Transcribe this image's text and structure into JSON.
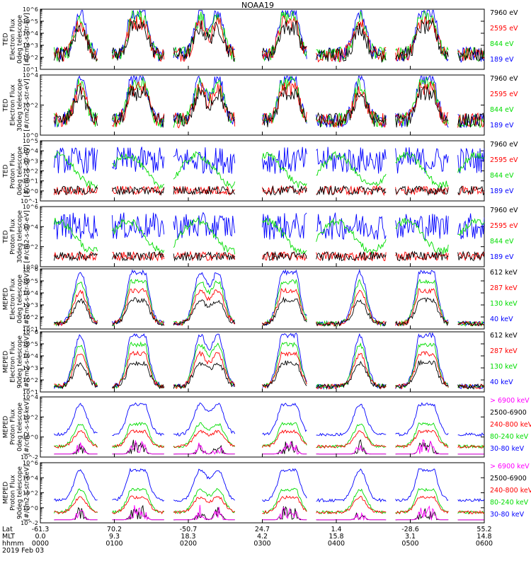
{
  "title": "NOAA19",
  "colors": {
    "black": "#000000",
    "red": "#ff0000",
    "green": "#00dd00",
    "blue": "#0000ff",
    "magenta": "#ff00ff"
  },
  "chart_data": {
    "type": "line",
    "x_unit": "hhmm",
    "xlim": [
      "0000",
      "0600"
    ],
    "panels": [
      {
        "ylabel": [
          "TED",
          "Electron Flux",
          "0deg telescope",
          "[#/cm2-s-str-eV]"
        ],
        "yticks": [
          "10^1",
          "10^2",
          "10^3",
          "10^4",
          "10^5",
          "10^6"
        ],
        "legend": [
          {
            "label": "7960 eV",
            "color": "#000000"
          },
          {
            "label": "2595 eV",
            "color": "#ff0000"
          },
          {
            "label": "844 eV",
            "color": "#00dd00"
          },
          {
            "label": "189 eV",
            "color": "#0000ff"
          }
        ]
      },
      {
        "ylabel": [
          "TED",
          "Electron Flux",
          "30deg telescope",
          "[#/cm2-s-str-eV]"
        ],
        "yticks": [
          "10^0",
          "10^2",
          "10^4"
        ],
        "legend": [
          {
            "label": "7960 eV",
            "color": "#000000"
          },
          {
            "label": "2595 eV",
            "color": "#ff0000"
          },
          {
            "label": "844 eV",
            "color": "#00dd00"
          },
          {
            "label": "189 eV",
            "color": "#0000ff"
          }
        ]
      },
      {
        "ylabel": [
          "TED",
          "Proton Flux",
          "0deg telescope",
          "[#/cm2-s-str-eV]"
        ],
        "yticks": [
          "10^-1",
          "10^0",
          "10^1",
          "10^2",
          "10^3",
          "10^4",
          "10^5"
        ],
        "legend": [
          {
            "label": "7960 eV",
            "color": "#000000"
          },
          {
            "label": "2595 eV",
            "color": "#ff0000"
          },
          {
            "label": "844 eV",
            "color": "#00dd00"
          },
          {
            "label": "189 eV",
            "color": "#0000ff"
          }
        ]
      },
      {
        "ylabel": [
          "TED",
          "Proton Flux",
          "30deg telescope",
          "[#/cm2-s-str-eV]"
        ],
        "yticks": [
          "10^0",
          "10^2",
          "10^4",
          "10^6"
        ],
        "legend": [
          {
            "label": "7960 eV",
            "color": "#000000"
          },
          {
            "label": "2595 eV",
            "color": "#ff0000"
          },
          {
            "label": "844 eV",
            "color": "#00dd00"
          },
          {
            "label": "189 eV",
            "color": "#0000ff"
          }
        ]
      },
      {
        "ylabel": [
          "MEPED",
          "Electron Flux",
          "0deg telescope",
          "[#/cm2-s-str-keV]"
        ],
        "yticks": [
          "10^1",
          "10^2",
          "10^3",
          "10^4",
          "10^5",
          "10^6"
        ],
        "legend": [
          {
            "label": "612 keV",
            "color": "#000000"
          },
          {
            "label": "287 keV",
            "color": "#ff0000"
          },
          {
            "label": "130 keV",
            "color": "#00dd00"
          },
          {
            "label": "40 keV",
            "color": "#0000ff"
          }
        ]
      },
      {
        "ylabel": [
          "MEPED",
          "Electron Flux",
          "90deg telescope",
          "[#/cm2-s-str-keV]"
        ],
        "yticks": [
          "10^1",
          "10^2",
          "10^3",
          "10^4",
          "10^5",
          "10^6"
        ],
        "legend": [
          {
            "label": "612 keV",
            "color": "#000000"
          },
          {
            "label": "287 keV",
            "color": "#ff0000"
          },
          {
            "label": "130 keV",
            "color": "#00dd00"
          },
          {
            "label": "40 keV",
            "color": "#0000ff"
          }
        ]
      },
      {
        "ylabel": [
          "MEPED",
          "Proton Flux",
          "0deg telescope",
          "[#/cm2-s-str-keV]"
        ],
        "yticks": [
          "10^-2",
          "10^0",
          "10^2",
          "10^4"
        ],
        "legend": [
          {
            "label": "> 6900 keV",
            "color": "#ff00ff"
          },
          {
            "label": "2500-6900",
            "color": "#000000"
          },
          {
            "label": "240-800 keV",
            "color": "#ff0000"
          },
          {
            "label": "80-240 keV",
            "color": "#00dd00"
          },
          {
            "label": "30-80 keV",
            "color": "#0000ff"
          }
        ]
      },
      {
        "ylabel": [
          "MEPED",
          "Proton Flux",
          "90deg telescope",
          "[#/cm2-s-str-keV]"
        ],
        "yticks": [
          "10^-2",
          "10^0",
          "10^2",
          "10^4",
          "10^6"
        ],
        "legend": [
          {
            "label": "> 6900 keV",
            "color": "#ff00ff"
          },
          {
            "label": "2500-6900",
            "color": "#000000"
          },
          {
            "label": "240-800 keV",
            "color": "#ff0000"
          },
          {
            "label": "80-240 keV",
            "color": "#00dd00"
          },
          {
            "label": "30-80 keV",
            "color": "#0000ff"
          }
        ]
      }
    ],
    "x_axis": {
      "row_labels": [
        "Lat",
        "MLT",
        "hhmm"
      ],
      "ticks": [
        {
          "lat": "-61.3",
          "mlt": "0.0",
          "hhmm": "0000"
        },
        {
          "lat": "70.2",
          "mlt": "9.3",
          "hhmm": "0100"
        },
        {
          "lat": "-50.7",
          "mlt": "18.3",
          "hhmm": "0200"
        },
        {
          "lat": "24.7",
          "mlt": "4.2",
          "hhmm": "0300"
        },
        {
          "lat": "1.4",
          "mlt": "15.8",
          "hhmm": "0400"
        },
        {
          "lat": "-28.6",
          "mlt": "3.1",
          "hhmm": "0500"
        },
        {
          "lat": "55.2",
          "mlt": "14.8",
          "hhmm": "0600"
        }
      ],
      "date": "2019 Feb 03"
    }
  }
}
